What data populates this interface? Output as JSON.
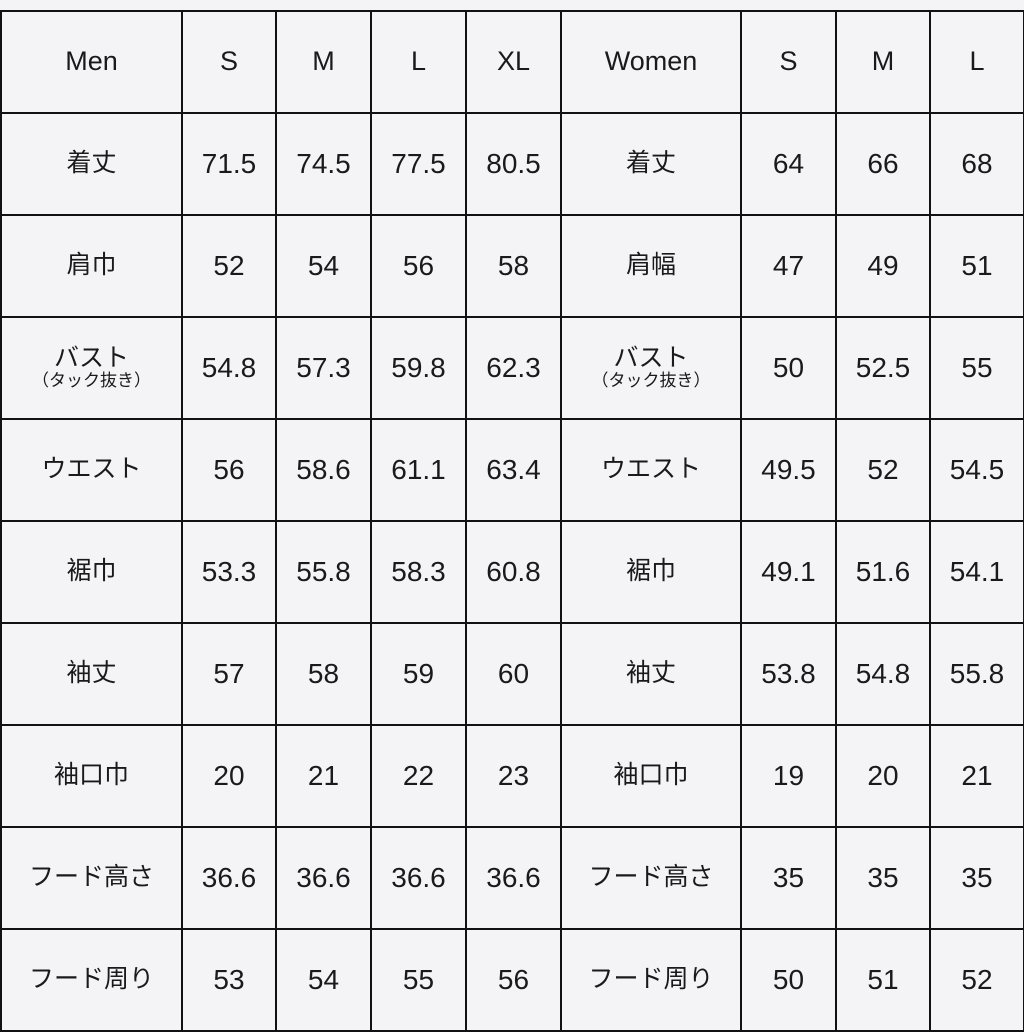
{
  "header": [
    "Men",
    "S",
    "M",
    "L",
    "XL",
    "Women",
    "S",
    "M",
    "L"
  ],
  "rows": [
    {
      "men_label": "着丈",
      "men": [
        "71.5",
        "74.5",
        "77.5",
        "80.5"
      ],
      "women_label": "着丈",
      "women": [
        "64",
        "66",
        "68"
      ]
    },
    {
      "men_label": "肩巾",
      "men": [
        "52",
        "54",
        "56",
        "58"
      ],
      "women_label": "肩幅",
      "women": [
        "47",
        "49",
        "51"
      ]
    },
    {
      "men_label": "バスト",
      "men_sub": "（タック抜き）",
      "men": [
        "54.8",
        "57.3",
        "59.8",
        "62.3"
      ],
      "women_label": "バスト",
      "women_sub": "（タック抜き）",
      "women": [
        "50",
        "52.5",
        "55"
      ]
    },
    {
      "men_label": "ウエスト",
      "men": [
        "56",
        "58.6",
        "61.1",
        "63.4"
      ],
      "women_label": "ウエスト",
      "women": [
        "49.5",
        "52",
        "54.5"
      ]
    },
    {
      "men_label": "裾巾",
      "men": [
        "53.3",
        "55.8",
        "58.3",
        "60.8"
      ],
      "women_label": "裾巾",
      "women": [
        "49.1",
        "51.6",
        "54.1"
      ]
    },
    {
      "men_label": "袖丈",
      "men": [
        "57",
        "58",
        "59",
        "60"
      ],
      "women_label": "袖丈",
      "women": [
        "53.8",
        "54.8",
        "55.8"
      ]
    },
    {
      "men_label": "袖口巾",
      "men": [
        "20",
        "21",
        "22",
        "23"
      ],
      "women_label": "袖口巾",
      "women": [
        "19",
        "20",
        "21"
      ]
    },
    {
      "men_label": "フード高さ",
      "men": [
        "36.6",
        "36.6",
        "36.6",
        "36.6"
      ],
      "women_label": "フード高さ",
      "women": [
        "35",
        "35",
        "35"
      ]
    },
    {
      "men_label": "フード周り",
      "men": [
        "53",
        "54",
        "55",
        "56"
      ],
      "women_label": "フード周り",
      "women": [
        "50",
        "51",
        "52"
      ]
    }
  ]
}
